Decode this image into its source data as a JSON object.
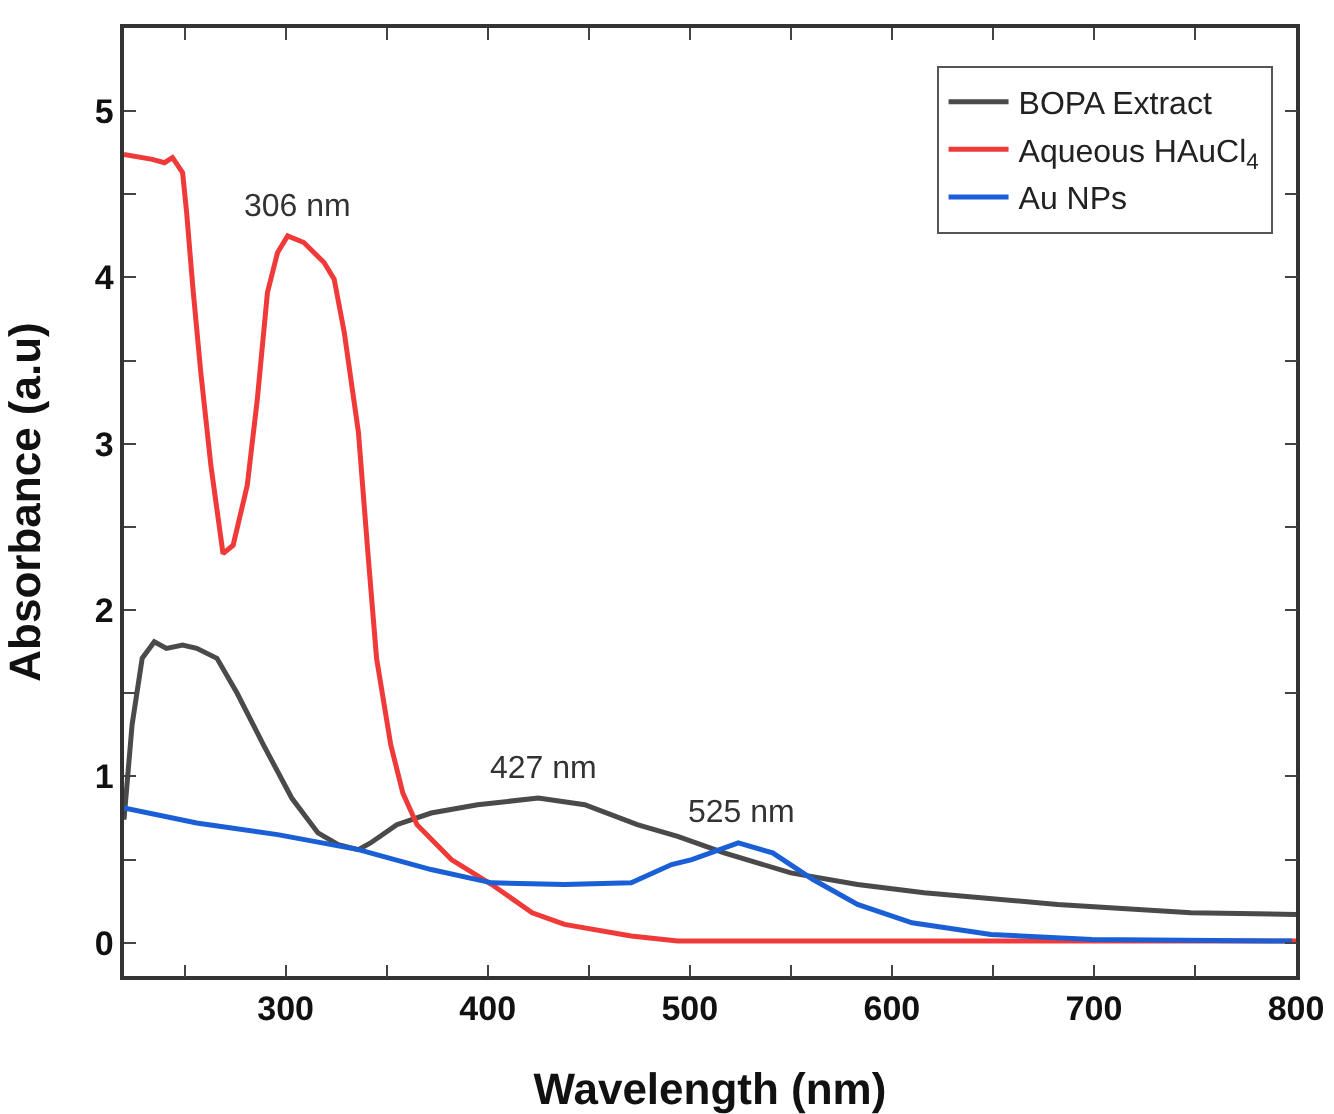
{
  "chart_data": {
    "type": "line",
    "xlabel": "Wavelength (nm)",
    "ylabel": "Absorbance (a.u)",
    "xlim": [
      220,
      800
    ],
    "ylim": [
      -0.2,
      5.5
    ],
    "xticks": [
      {
        "value": 250,
        "label": null
      },
      300,
      {
        "value": 350,
        "label": null
      },
      400,
      {
        "value": 450,
        "label": null
      },
      500,
      {
        "value": 550,
        "label": null
      },
      600,
      {
        "value": 650,
        "label": null
      },
      700,
      {
        "value": 750,
        "label": null
      },
      800
    ],
    "yticks": [
      0,
      {
        "value": 0.5,
        "label": null
      },
      1,
      {
        "value": 1.5,
        "label": null
      },
      2,
      {
        "value": 2.5,
        "label": null
      },
      3,
      {
        "value": 3.5,
        "label": null
      },
      4,
      {
        "value": 4.5,
        "label": null
      },
      5
    ],
    "grid": false,
    "legend": "top right",
    "marker": "none",
    "line_style": "solid",
    "series": [
      {
        "name": "BOPA Extract",
        "color": "#4a4a4a",
        "x": [
          220,
          224,
          229,
          235,
          241,
          249,
          256,
          266,
          276,
          289,
          303,
          316,
          326,
          336,
          342,
          355,
          372,
          395,
          425,
          448,
          474,
          494,
          517,
          550,
          583,
          616,
          682,
          748,
          800
        ],
        "values": [
          0.74,
          1.31,
          1.71,
          1.81,
          1.77,
          1.79,
          1.77,
          1.71,
          1.5,
          1.19,
          0.87,
          0.66,
          0.59,
          0.56,
          0.6,
          0.71,
          0.78,
          0.83,
          0.87,
          0.83,
          0.71,
          0.64,
          0.54,
          0.42,
          0.35,
          0.3,
          0.23,
          0.18,
          0.17
        ]
      },
      {
        "name": "Aqueous HAuCl$_{4}$",
        "color": "#f03a3a",
        "x": [
          220,
          234,
          240,
          244,
          249,
          251,
          254,
          258,
          263,
          269,
          274,
          281,
          286,
          291,
          296,
          301,
          309,
          319,
          324,
          329,
          336,
          341,
          345,
          352,
          358,
          365,
          382,
          402,
          422,
          438,
          471,
          494,
          600,
          700,
          800
        ],
        "values": [
          4.74,
          4.71,
          4.69,
          4.72,
          4.63,
          4.39,
          3.95,
          3.43,
          2.87,
          2.34,
          2.39,
          2.75,
          3.27,
          3.91,
          4.15,
          4.25,
          4.21,
          4.09,
          3.99,
          3.67,
          3.07,
          2.3,
          1.71,
          1.19,
          0.9,
          0.71,
          0.5,
          0.35,
          0.18,
          0.11,
          0.04,
          0.01,
          0.01,
          0.01,
          0.01
        ]
      },
      {
        "name": "Au NPs",
        "color": "#1a5fd6",
        "x": [
          220,
          256,
          296,
          336,
          372,
          402,
          438,
          471,
          491,
          501,
          524,
          541,
          561,
          583,
          610,
          649,
          699,
          798
        ],
        "values": [
          0.81,
          0.72,
          0.65,
          0.56,
          0.44,
          0.36,
          0.35,
          0.36,
          0.47,
          0.5,
          0.6,
          0.54,
          0.38,
          0.23,
          0.12,
          0.05,
          0.02,
          0.01
        ]
      }
    ],
    "annotations": [
      {
        "text": "306 nm",
        "x": 306,
        "y": 4.25
      },
      {
        "text": "427 nm",
        "x": 427,
        "y": 0.87
      },
      {
        "text": "525 nm",
        "x": 525,
        "y": 0.6
      }
    ]
  }
}
